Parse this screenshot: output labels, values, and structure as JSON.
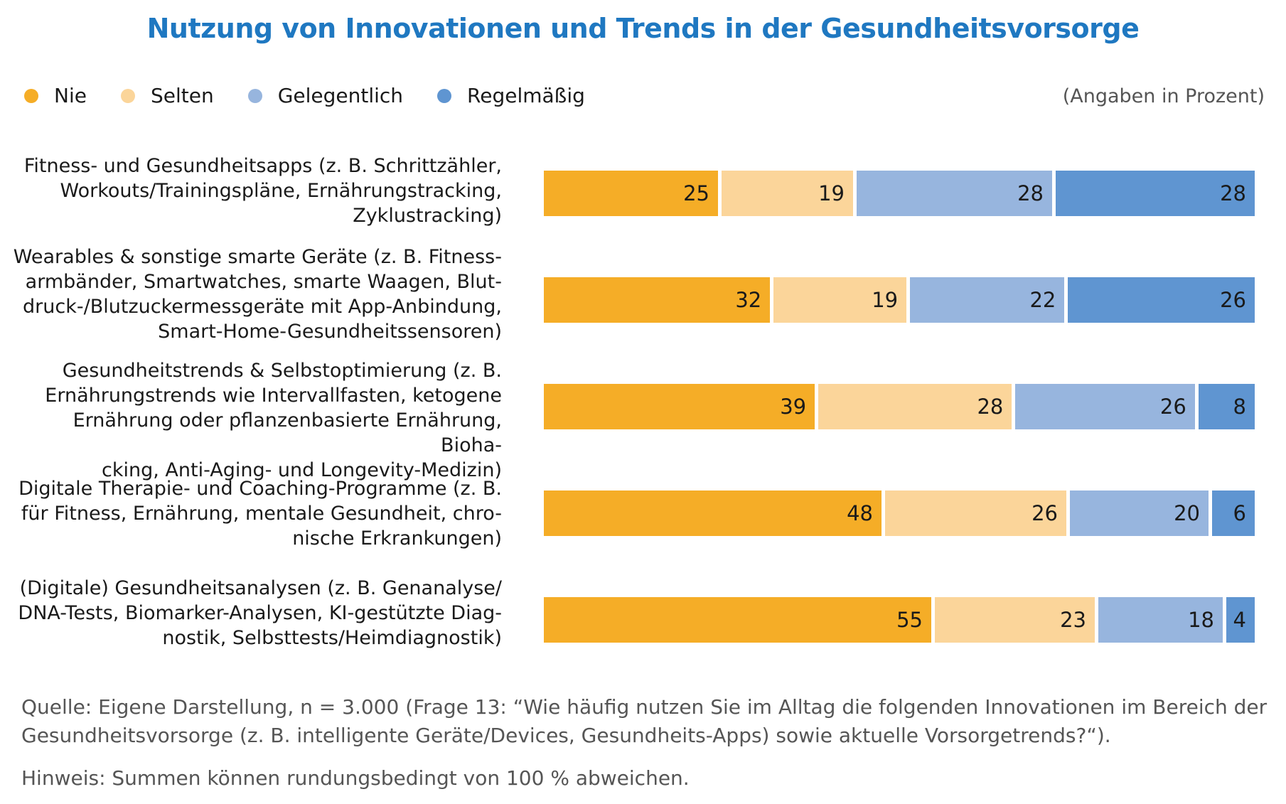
{
  "title": "Nutzung von Innovationen und Trends in der Gesundheitsvorsorge",
  "unit_note": "(Angaben in Prozent)",
  "legend": [
    {
      "label": "Nie",
      "color": "#f5ad27"
    },
    {
      "label": "Selten",
      "color": "#fbd59a"
    },
    {
      "label": "Gelegentlich",
      "color": "#97b5de"
    },
    {
      "label": "Regelmäßig",
      "color": "#5f95d1"
    }
  ],
  "source": "Quelle: Eigene Darstellung, n = 3.000 (Frage 13: “Wie häufig nutzen Sie im Alltag die folgenden Innovationen im Bereich der Gesundheitsvorsorge (z. B. intelligente Geräte/Devices, Gesundheits-Apps) sowie aktuelle Vorsorgetrends?“).",
  "note": "Hinweis: Summen können rundungsbedingt von 100 % abweichen.",
  "chart_data": {
    "type": "bar",
    "orientation": "horizontal",
    "stacked": true,
    "title": "Nutzung von Innovationen und Trends in der Gesundheitsvorsorge",
    "categories": [
      "Fitness- und Gesundheitsapps (z. B. Schrittzähler,\nWorkouts/Trainingspläne, Ernährungstracking,\nZyklustracking)",
      "Wearables & sonstige smarte Geräte (z. B. Fitness-\narmbänder, Smartwatches, smarte Waagen, Blut-\ndruck-/Blutzuckermessgeräte mit App-Anbindung,\nSmart-Home-Gesundheitssensoren)",
      "Gesundheitstrends & Selbstoptimierung (z. B.\nErnährungstrends wie Intervallfasten, ketogene\nErnährung oder pflanzenbasierte Ernährung, Bioha-\ncking, Anti-Aging- und Longevity-Medizin)",
      "Digitale Therapie- und Coaching-Programme (z. B.\nfür Fitness, Ernährung, mentale Gesundheit, chro-\nnische Erkrankungen)",
      "(Digitale) Gesundheitsanalysen (z. B. Genanalyse/\nDNA-Tests, Biomarker-Analysen, KI-gestützte Diag-\nnostik, Selbsttests/Heimdiagnostik)"
    ],
    "series": [
      {
        "name": "Nie",
        "color": "#f5ad27",
        "values": [
          25,
          32,
          39,
          48,
          55
        ]
      },
      {
        "name": "Selten",
        "color": "#fbd59a",
        "values": [
          19,
          19,
          28,
          26,
          23
        ]
      },
      {
        "name": "Gelegentlich",
        "color": "#97b5de",
        "values": [
          28,
          22,
          26,
          20,
          18
        ]
      },
      {
        "name": "Regelmäßig",
        "color": "#5f95d1",
        "values": [
          28,
          26,
          8,
          6,
          4
        ]
      }
    ],
    "legend_position": "top-left",
    "grid": false
  }
}
